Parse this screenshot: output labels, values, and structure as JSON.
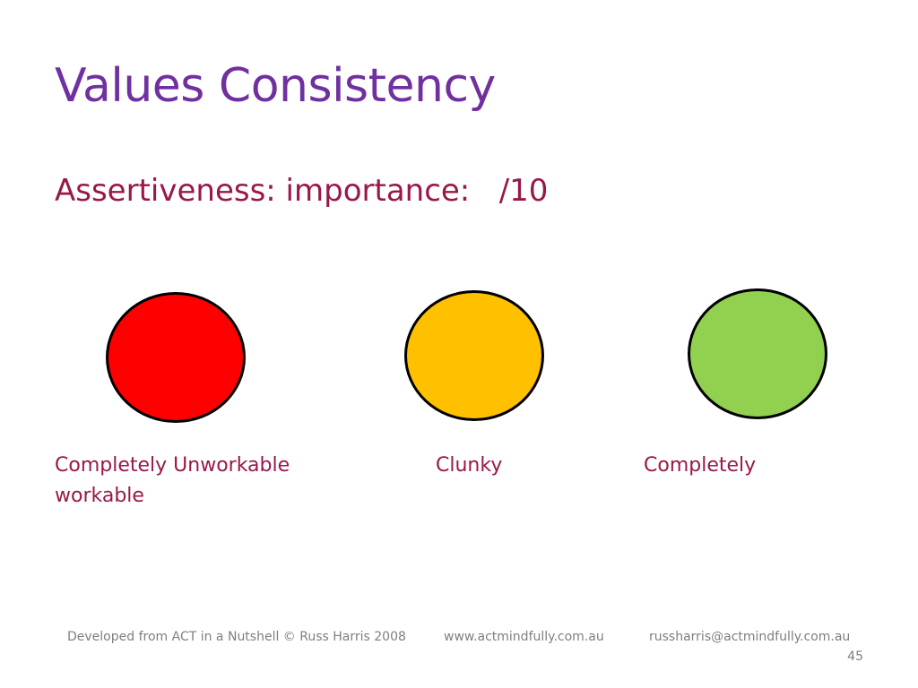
{
  "slide": {
    "title": "Values Consistency",
    "subtitle": "Assertiveness: importance:   /10"
  },
  "scale": {
    "circles": [
      {
        "name": "red",
        "color": "#ff0000"
      },
      {
        "name": "amber",
        "color": "#ffc000"
      },
      {
        "name": "green",
        "color": "#92d050"
      }
    ],
    "labels": {
      "left": "Completely Unworkable",
      "middle": "Clunky",
      "right": "Completely",
      "wrap": "workable"
    }
  },
  "footer": {
    "credit": "Developed from ACT in a Nutshell  © Russ Harris 2008",
    "website": "www.actmindfully.com.au",
    "email": "russharris@actmindfully.com.au",
    "page_number": "45"
  },
  "colors": {
    "title": "#7030a0",
    "body_text": "#99184a",
    "footer_text": "#7f7f7f"
  }
}
